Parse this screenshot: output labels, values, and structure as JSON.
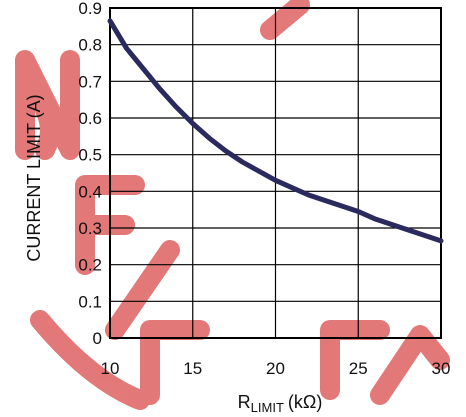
{
  "chart_data": {
    "type": "line",
    "xlabel": "R",
    "xlabel_subscript": "LIMIT",
    "xlabel_unit": "(kΩ)",
    "ylabel": "CURRENT LIMIT (A)",
    "xlim": [
      10,
      30
    ],
    "ylim": [
      0,
      0.9
    ],
    "x_ticks": [
      "10",
      "15",
      "20",
      "25",
      "30"
    ],
    "y_ticks": [
      "0",
      "0.1",
      "0.2",
      "0.3",
      "0.4",
      "0.5",
      "0.6",
      "0.7",
      "0.8",
      "0.9"
    ],
    "grid": true,
    "line_color": "#2a2a5e",
    "watermark_color": "#e06a6a",
    "series": [
      {
        "x": [
          10,
          11,
          12,
          13,
          14,
          15,
          16,
          17,
          18,
          19,
          20,
          21,
          22,
          23,
          24,
          25,
          26,
          27,
          28,
          29,
          30
        ],
        "values": [
          0.865,
          0.79,
          0.735,
          0.68,
          0.63,
          0.585,
          0.545,
          0.51,
          0.48,
          0.455,
          0.43,
          0.41,
          0.39,
          0.375,
          0.36,
          0.345,
          0.325,
          0.31,
          0.295,
          0.28,
          0.265
        ]
      }
    ]
  }
}
